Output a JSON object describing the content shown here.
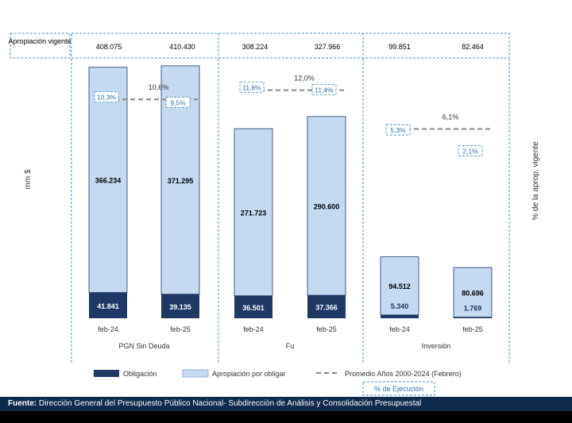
{
  "chart_data": {
    "type": "bar",
    "stacked": true,
    "ylabel": "mm $",
    "y2label": "% de la aprop. vigente",
    "header_label": "Apropiación vigente",
    "groups": [
      {
        "name": "PGN Sin Deuda",
        "appropriations": [
          "408.075",
          "410.430"
        ],
        "avg_label": "10,6%",
        "avg_value": 10.6
      },
      {
        "name": "Fu",
        "appropriations": [
          "308.224",
          "327.966"
        ],
        "avg_label": "12,0%",
        "avg_value": 12.0
      },
      {
        "name": "Inversión",
        "appropriations": [
          "99.851",
          "82.464"
        ],
        "avg_label": "6,1%",
        "avg_value": 6.1
      }
    ],
    "categories": [
      "feb-24",
      "feb-25",
      "feb-24",
      "feb-25",
      "feb-24",
      "feb-25"
    ],
    "series": [
      {
        "name": "Obligación",
        "color": "#1f3864",
        "values": [
          41841,
          39135,
          36501,
          37366,
          5340,
          1769
        ],
        "labels": [
          "41.841",
          "39.135",
          "36.501",
          "37.366",
          "5.340",
          "1.769"
        ]
      },
      {
        "name": "Apropiación por obligar",
        "color": "#c5d9f1",
        "values": [
          366234,
          371295,
          271723,
          290600,
          94512,
          80696
        ],
        "labels": [
          "366.234",
          "371.295",
          "271.723",
          "290.600",
          "94.512",
          "80.696"
        ]
      }
    ],
    "execution_pct": {
      "values": [
        10.3,
        9.5,
        11.8,
        11.4,
        5.3,
        2.1
      ],
      "labels": [
        "10,3%",
        "9,5%",
        "11,8%",
        "11,4%",
        "5,3%",
        "2,1%"
      ]
    },
    "legend": {
      "items": [
        "Obligación",
        "Apropiación por obligar",
        "Promedio  Años 2000-2024 (Febrero)"
      ],
      "execution_label": "% de Ejecución"
    }
  },
  "footer": {
    "source_label": "Fuente:",
    "source_text": "Dirección General del Presupuesto Público Nacional- Subdirección de Análisis y Consolidación Presupuestal"
  }
}
